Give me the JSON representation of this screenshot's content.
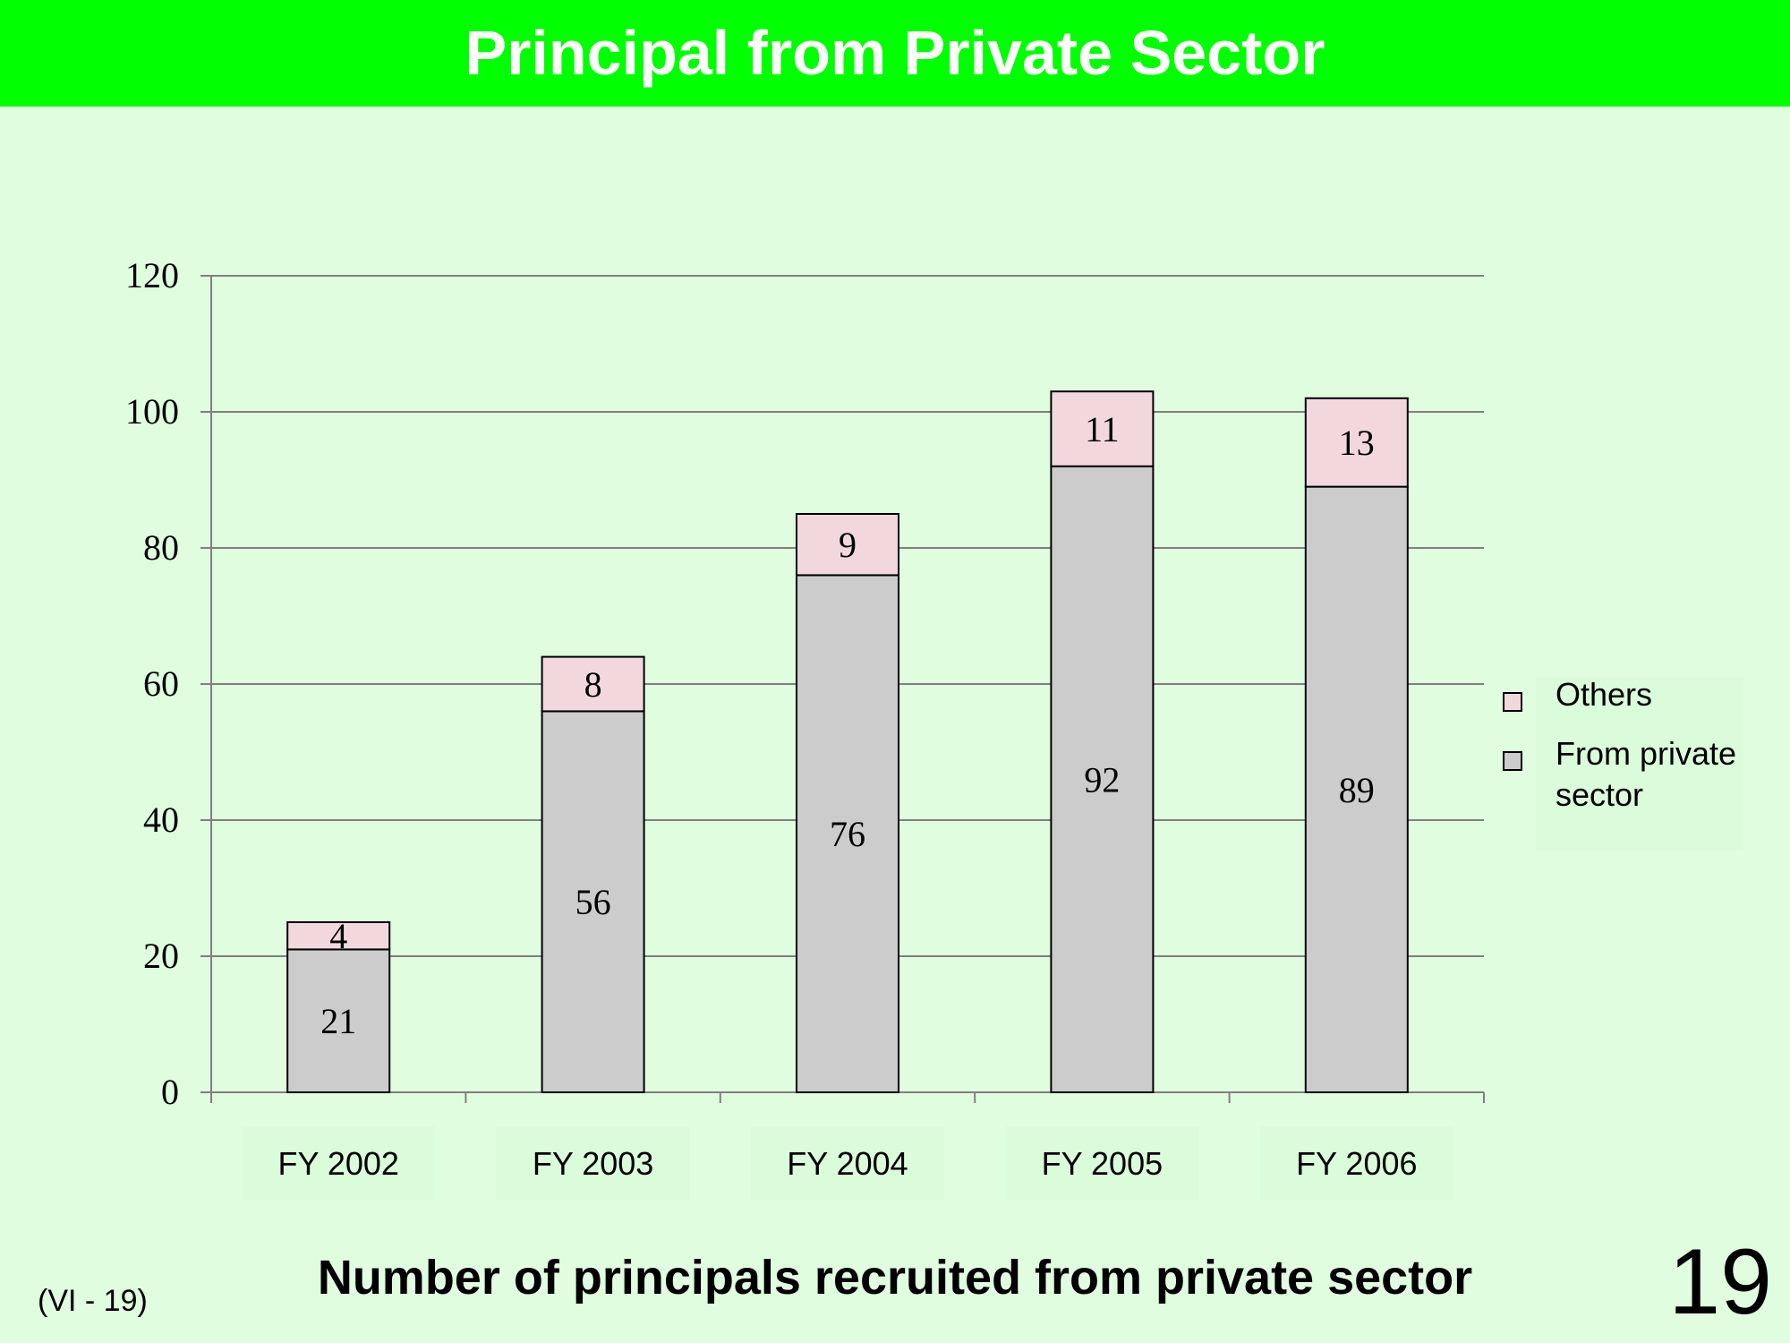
{
  "slide": {
    "title": "Principal from Private Sector",
    "subtitle": "Number of principals recruited from private sector",
    "reference": "(VI - 19)",
    "page_number": "19"
  },
  "colors": {
    "title_bar": "#00ff00",
    "background": "#e0fde0",
    "others": "#f2d8dc",
    "private_sector": "#cccccc",
    "label_box": "#dafcda"
  },
  "chart_data": {
    "type": "bar",
    "stacked": true,
    "categories": [
      "FY 2002",
      "FY 2003",
      "FY 2004",
      "FY 2005",
      "FY 2006"
    ],
    "series": [
      {
        "name": "From private sector",
        "legend_lines": [
          "From private",
          "sector"
        ],
        "values": [
          21,
          56,
          76,
          92,
          89
        ]
      },
      {
        "name": "Others",
        "legend_lines": [
          "Others"
        ],
        "values": [
          4,
          8,
          9,
          11,
          13
        ]
      }
    ],
    "ylim": [
      0,
      120
    ],
    "yticks": [
      "0",
      "20",
      "40",
      "60",
      "80",
      "100",
      "120"
    ],
    "grid": true,
    "legend_position": "right"
  }
}
